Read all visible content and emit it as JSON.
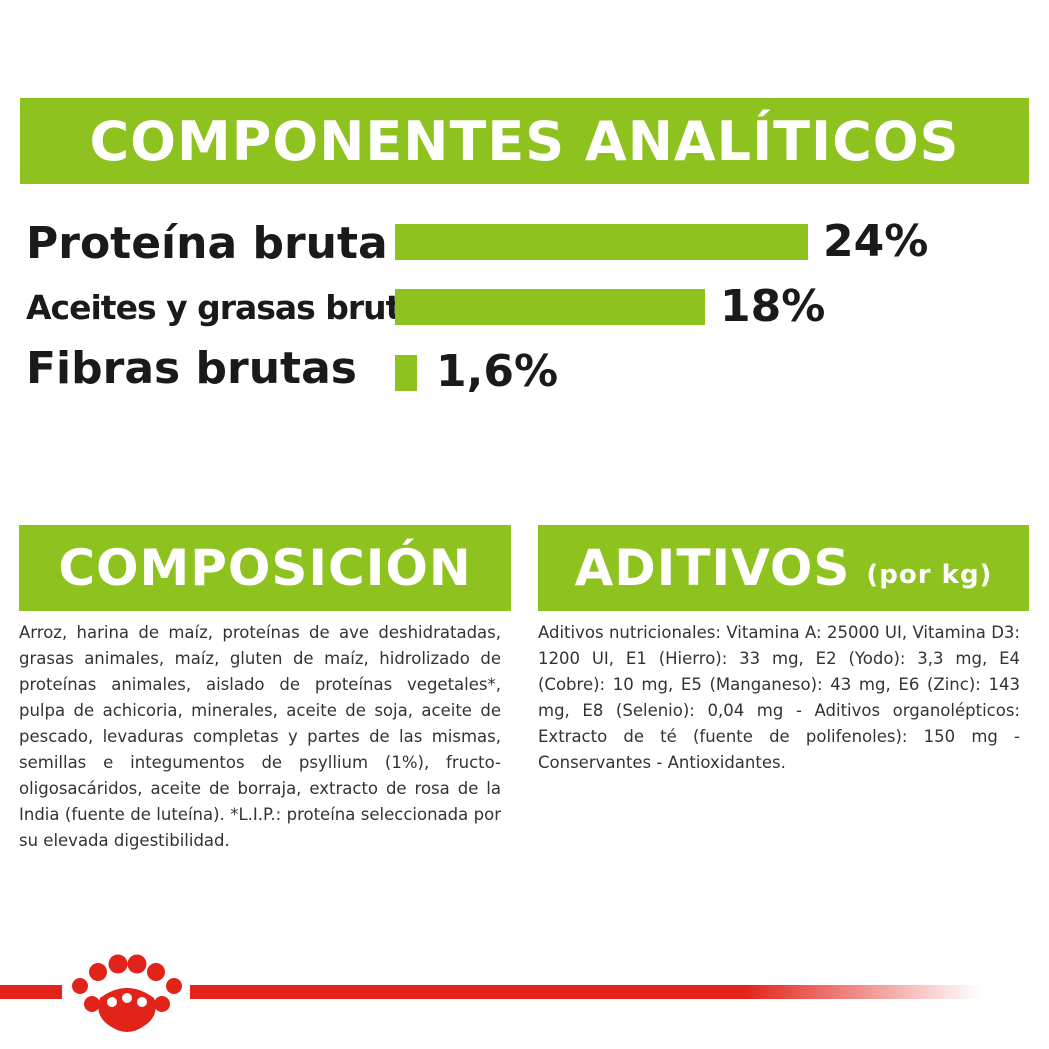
{
  "analiticos": {
    "title": "COMPONENTES ANALÍTICOS",
    "items": [
      {
        "label": "Proteína bruta",
        "value": "24%",
        "percent": 24
      },
      {
        "label": "Aceites y grasas brutos",
        "value": "18%",
        "percent": 18
      },
      {
        "label": "Fibras brutas",
        "value": "1,6%",
        "percent": 1.6
      }
    ]
  },
  "composicion": {
    "title": "COMPOSICIÓN",
    "text": "Arroz, harina de maíz, proteínas de ave deshidratadas, grasas animales, maíz, gluten de maíz, hidrolizado de proteínas animales, aislado de proteínas vegetales*, pulpa de achicoria, minerales, aceite de soja, aceite de pescado, levaduras completas y partes de las mismas, semillas e integumentos de psyllium (1%), fructo-oligosacáridos, aceite de borraja, extracto de rosa de la India (fuente de luteína). *L.I.P.: proteína seleccionada por su elevada digestibilidad."
  },
  "aditivos": {
    "title": "ADITIVOS",
    "title_suffix": "(por kg)",
    "text": "Aditivos nutricionales: Vitamina A: 25000 UI, Vitamina D3: 1200 UI, E1 (Hierro): 33 mg, E2 (Yodo): 3,3 mg, E4 (Cobre): 10 mg, E5 (Manganeso): 43 mg, E6 (Zinc): 143 mg, E8 (Selenio): 0,04 mg - Aditivos organolépticos: Extracto de té (fuente de polifenoles): 150 mg - Conservantes - Antioxidantes."
  },
  "colors": {
    "accent_green": "#8dc21f",
    "brand_red": "#e2231a",
    "text_dark": "#1a1a1a"
  },
  "icons": {
    "brand_logo": "royal-canin-crown-icon"
  }
}
